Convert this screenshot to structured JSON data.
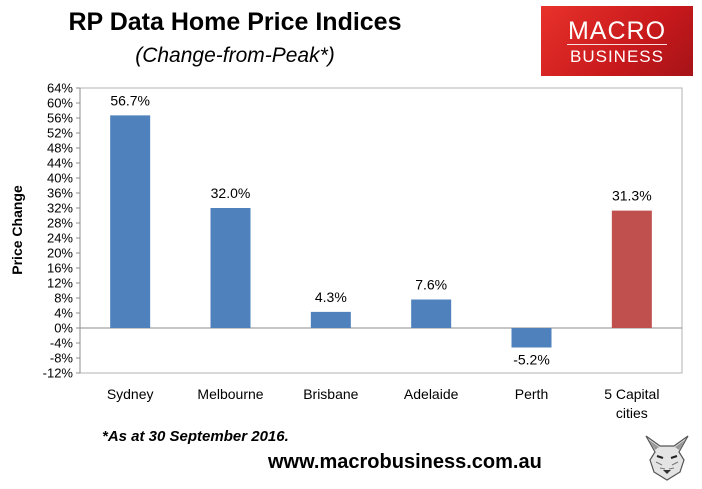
{
  "header": {
    "title": "RP Data Home Price Indices",
    "subtitle": "(Change-from-Peak*)"
  },
  "logo": {
    "line1": "MACRO",
    "line2": "BUSINESS"
  },
  "footnote": "*As at 30 September 2016.",
  "website": "www.macrobusiness.com.au",
  "colors": {
    "bar": "#4f81bd",
    "highlight": "#c0504d",
    "logo_red": "#d7201f"
  },
  "chart_data": {
    "type": "bar",
    "title": "RP Data Home Price Indices",
    "subtitle": "(Change-from-Peak*)",
    "ylabel": "Price Change",
    "xlabel": "",
    "ylim": [
      -12,
      64
    ],
    "ytick_step": 4,
    "ytick_labels": [
      "64%",
      "60%",
      "56%",
      "52%",
      "48%",
      "44%",
      "40%",
      "36%",
      "32%",
      "28%",
      "24%",
      "20%",
      "16%",
      "12%",
      "8%",
      "4%",
      "0%",
      "-4%",
      "-8%",
      "-12%"
    ],
    "categories": [
      [
        "Sydney"
      ],
      [
        "Melbourne"
      ],
      [
        "Brisbane"
      ],
      [
        "Adelaide"
      ],
      [
        "Perth"
      ],
      [
        "5 Capital",
        "cities"
      ]
    ],
    "values": [
      56.7,
      32.0,
      4.3,
      7.6,
      -5.2,
      31.3
    ],
    "data_labels": [
      "56.7%",
      "32.0%",
      "4.3%",
      "7.6%",
      "-5.2%",
      "31.3%"
    ],
    "highlight_index": 5,
    "grid": false,
    "legend": "none"
  }
}
